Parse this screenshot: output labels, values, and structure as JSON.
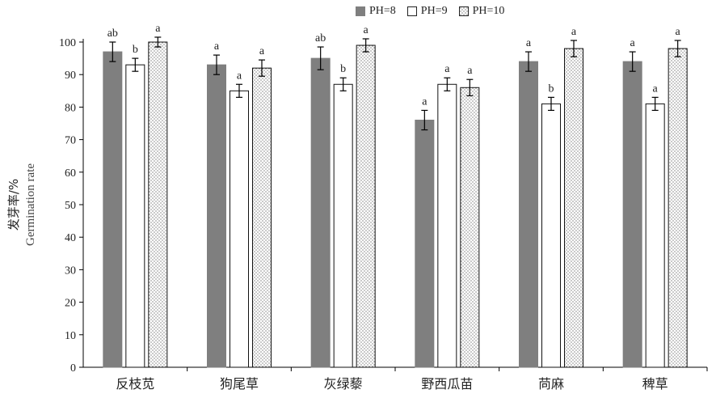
{
  "chart_data": {
    "type": "bar",
    "ylabel_cn": "发芽率/%",
    "ylabel_en": "Germination rate",
    "ylim": [
      0,
      100
    ],
    "yticks": [
      0,
      10,
      20,
      30,
      40,
      50,
      60,
      70,
      80,
      90,
      100
    ],
    "categories": [
      "反枝苋",
      "狗尾草",
      "灰绿藜",
      "野西瓜苗",
      "苘麻",
      "稗草"
    ],
    "series": [
      {
        "name": "PH=8",
        "pattern": "solid",
        "color": "#7f7f7f",
        "values": [
          97,
          93,
          95,
          76,
          94,
          94
        ],
        "errors": [
          3,
          3,
          3.5,
          3,
          3,
          3
        ],
        "letters": [
          "ab",
          "a",
          "ab",
          "a",
          "a",
          "a"
        ]
      },
      {
        "name": "PH=9",
        "pattern": "hollow",
        "color": "#ffffff",
        "values": [
          93,
          85,
          87,
          87,
          81,
          81
        ],
        "errors": [
          2,
          2,
          2,
          2,
          2,
          2
        ],
        "letters": [
          "b",
          "a",
          "b",
          "a",
          "b",
          "a"
        ]
      },
      {
        "name": "PH=10",
        "pattern": "dotted",
        "color": "#ffffff",
        "values": [
          100,
          92,
          99,
          86,
          98,
          98
        ],
        "errors": [
          1.5,
          2.5,
          2,
          2.5,
          2.5,
          2.5
        ],
        "letters": [
          "a",
          "a",
          "a",
          "a",
          "a",
          "a"
        ]
      }
    ],
    "legend_position": "top-right",
    "grid": false
  }
}
